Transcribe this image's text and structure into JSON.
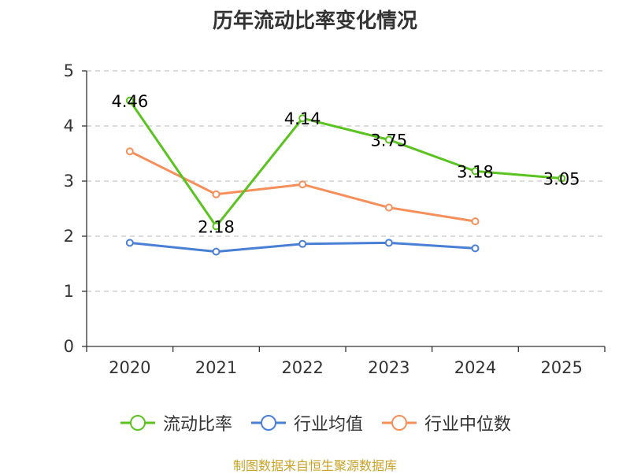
{
  "chart_data": {
    "type": "line",
    "title": "历年流动比率变化情况",
    "categories": [
      "2020",
      "2021",
      "2022",
      "2023",
      "2024",
      "2025"
    ],
    "ylim": [
      0,
      5
    ],
    "yticks": [
      "0",
      "1",
      "2",
      "3",
      "4",
      "5"
    ],
    "grid": "horizontal dashed",
    "legend_position": "bottom",
    "series": [
      {
        "name": "流动比率",
        "color": "#5ac31f",
        "values": [
          4.46,
          2.18,
          4.14,
          3.75,
          3.18,
          3.05
        ],
        "labels": [
          "4.46",
          "2.18",
          "4.14",
          "3.75",
          "3.18",
          "3.05"
        ]
      },
      {
        "name": "行业均值",
        "color": "#4a7fd6",
        "values": [
          1.88,
          1.72,
          1.86,
          1.88,
          1.78,
          null
        ]
      },
      {
        "name": "行业中位数",
        "color": "#f68f5a",
        "values": [
          3.54,
          2.76,
          2.94,
          2.52,
          2.27,
          null
        ]
      }
    ]
  },
  "source_text": "制图数据来自恒生聚源数据库"
}
